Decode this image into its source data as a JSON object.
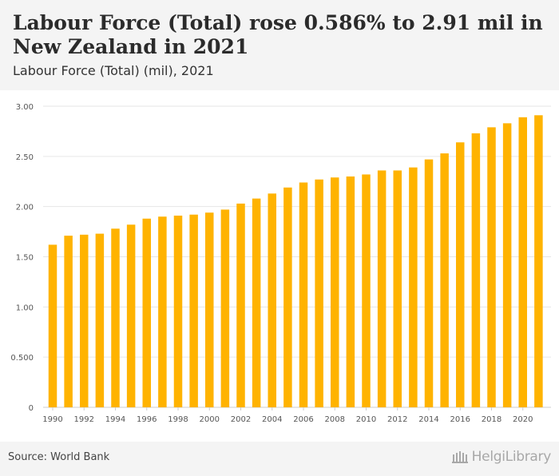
{
  "header": {
    "title": "Labour Force (Total) rose 0.586% to 2.91 mil in New Zealand in 2021",
    "subtitle": "Labour Force (Total) (mil), 2021"
  },
  "footer": {
    "source": "Source: World Bank",
    "logo": "HelgiLibrary"
  },
  "colors": {
    "bar": "#FFB300",
    "grid": "#e6e6e6",
    "header_bg": "#f4f4f4"
  },
  "chart_data": {
    "type": "bar",
    "title": "Labour Force (Total) (mil), 2021",
    "categories": [
      "1990",
      "1991",
      "1992",
      "1993",
      "1994",
      "1995",
      "1996",
      "1997",
      "1998",
      "1999",
      "2000",
      "2001",
      "2002",
      "2003",
      "2004",
      "2005",
      "2006",
      "2007",
      "2008",
      "2009",
      "2010",
      "2011",
      "2012",
      "2013",
      "2014",
      "2015",
      "2016",
      "2017",
      "2018",
      "2019",
      "2020",
      "2021"
    ],
    "tick_labels_x": [
      "1990",
      "1992",
      "1994",
      "1996",
      "1998",
      "2000",
      "2002",
      "2004",
      "2006",
      "2008",
      "2010",
      "2012",
      "2014",
      "2016",
      "2018",
      "2020"
    ],
    "values": [
      1.62,
      1.71,
      1.72,
      1.73,
      1.78,
      1.82,
      1.88,
      1.9,
      1.91,
      1.92,
      1.94,
      1.97,
      2.03,
      2.08,
      2.13,
      2.19,
      2.24,
      2.27,
      2.29,
      2.3,
      2.32,
      2.36,
      2.36,
      2.39,
      2.47,
      2.53,
      2.64,
      2.73,
      2.79,
      2.83,
      2.89,
      2.91
    ],
    "yticks": [
      0,
      0.5,
      1.0,
      1.5,
      2.0,
      2.5,
      3.0
    ],
    "ytick_labels": [
      "0",
      "0.500",
      "1.00",
      "1.50",
      "2.00",
      "2.50",
      "3.00"
    ],
    "ylim": [
      0,
      3.0
    ],
    "xlabel": "",
    "ylabel": "",
    "grid": true,
    "legend": "none"
  }
}
